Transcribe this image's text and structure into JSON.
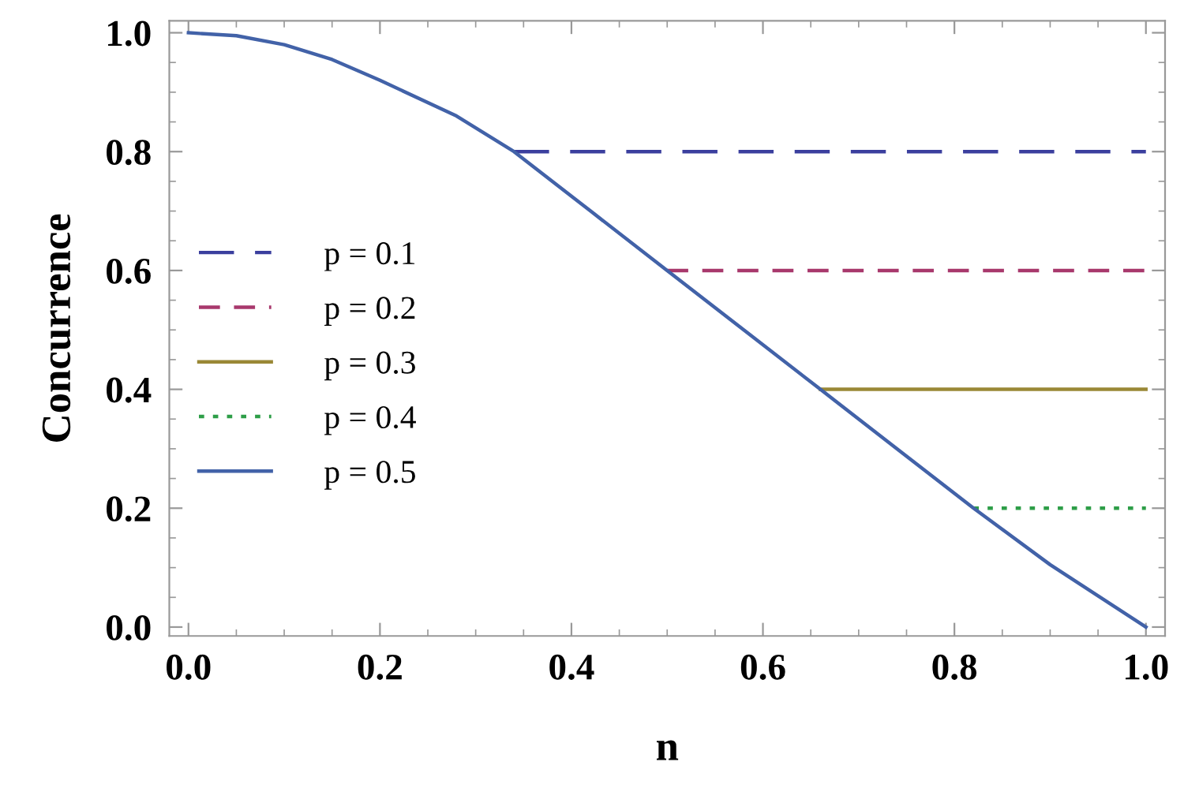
{
  "chart_data": {
    "type": "line",
    "xlabel": "n",
    "ylabel": "Concurrence",
    "xlim": [
      -0.02,
      1.02
    ],
    "ylim": [
      -0.015,
      1.02
    ],
    "xticks": [
      {
        "value": 0,
        "label": "0.0"
      },
      0.2,
      0.4,
      0.6,
      0.8,
      {
        "value": 1,
        "label": "1.0"
      }
    ],
    "yticks": [
      {
        "value": 0,
        "label": "0.0"
      },
      0.2,
      0.4,
      0.6,
      0.8,
      {
        "value": 1,
        "label": "1.0"
      }
    ],
    "grid": false,
    "legend": "left",
    "marker": "none",
    "series": [
      {
        "name": "p = 0.1",
        "color": "#3b3f9e",
        "line_style": "dashed",
        "x": [
          0.34,
          1
        ],
        "values": [
          0.8,
          0.8
        ]
      },
      {
        "name": "p = 0.2",
        "color": "#a8386c",
        "line_style": "dashed",
        "x": [
          0.5,
          1
        ],
        "values": [
          0.6,
          0.6
        ]
      },
      {
        "name": "p = 0.3",
        "color": "#9a8836",
        "line_style": "solid",
        "x": [
          0.66,
          1
        ],
        "values": [
          0.4,
          0.4
        ]
      },
      {
        "name": "p = 0.4",
        "color": "#2e9e48",
        "line_style": "dotted",
        "x": [
          0.82,
          1
        ],
        "values": [
          0.2,
          0.2
        ]
      },
      {
        "name": "p = 0.5",
        "color": "#4262a8",
        "line_style": "solid",
        "x": [
          0,
          0.05,
          0.1,
          0.15,
          0.2,
          0.28,
          0.34,
          0.42,
          0.5,
          0.58,
          0.66,
          0.74,
          0.82,
          0.9,
          1
        ],
        "values": [
          1,
          0.995,
          0.98,
          0.955,
          0.92,
          0.86,
          0.8,
          0.7,
          0.6,
          0.5,
          0.4,
          0.3,
          0.2,
          0.105,
          0
        ]
      }
    ]
  }
}
